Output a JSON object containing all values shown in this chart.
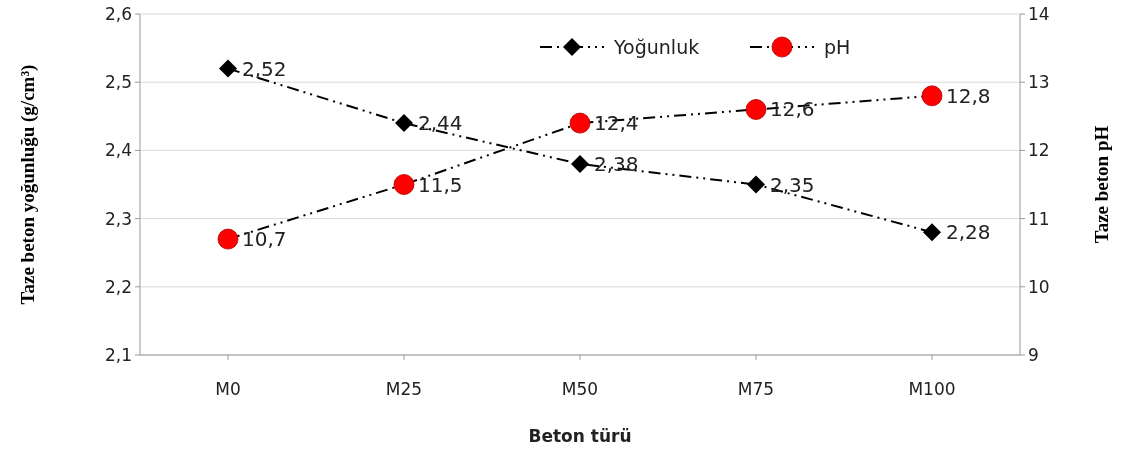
{
  "chart_data": {
    "type": "line",
    "xlabel": "Beton türü",
    "ylabel": "Taze beton yoğunluğu (g/cm³)",
    "y2label": "Taze beton pH",
    "categories": [
      "M0",
      "M25",
      "M50",
      "M75",
      "M100"
    ],
    "series": [
      {
        "name": "Yoğunluk",
        "color": "#000000",
        "marker": "diamond",
        "values": [
          2.52,
          2.44,
          2.38,
          2.35,
          2.28
        ],
        "value_labels": [
          "2,52",
          "2,44",
          "2,38",
          "2,35",
          "2,28"
        ]
      },
      {
        "name": "pH",
        "color": "#ff0000",
        "marker": "circle",
        "axis": "y2",
        "values": [
          10.7,
          11.5,
          12.4,
          12.6,
          12.8
        ],
        "value_labels": [
          "10,7",
          "11,5",
          "12,4",
          "12,6",
          "12,8"
        ]
      }
    ],
    "ylim": [
      2.1,
      2.6
    ],
    "yticks": [
      {
        "value": 2.1,
        "label": "2,1"
      },
      {
        "value": 2.2,
        "label": "2,2"
      },
      {
        "value": 2.3,
        "label": "2,3"
      },
      {
        "value": 2.4,
        "label": "2,4"
      },
      {
        "value": 2.5,
        "label": "2,5"
      },
      {
        "value": 2.6,
        "label": "2,6"
      }
    ],
    "y2lim": [
      9,
      14
    ],
    "y2ticks": [
      9,
      10,
      11,
      12,
      13,
      14
    ],
    "grid": "y",
    "legend": "top right",
    "line_style": "dashed"
  }
}
